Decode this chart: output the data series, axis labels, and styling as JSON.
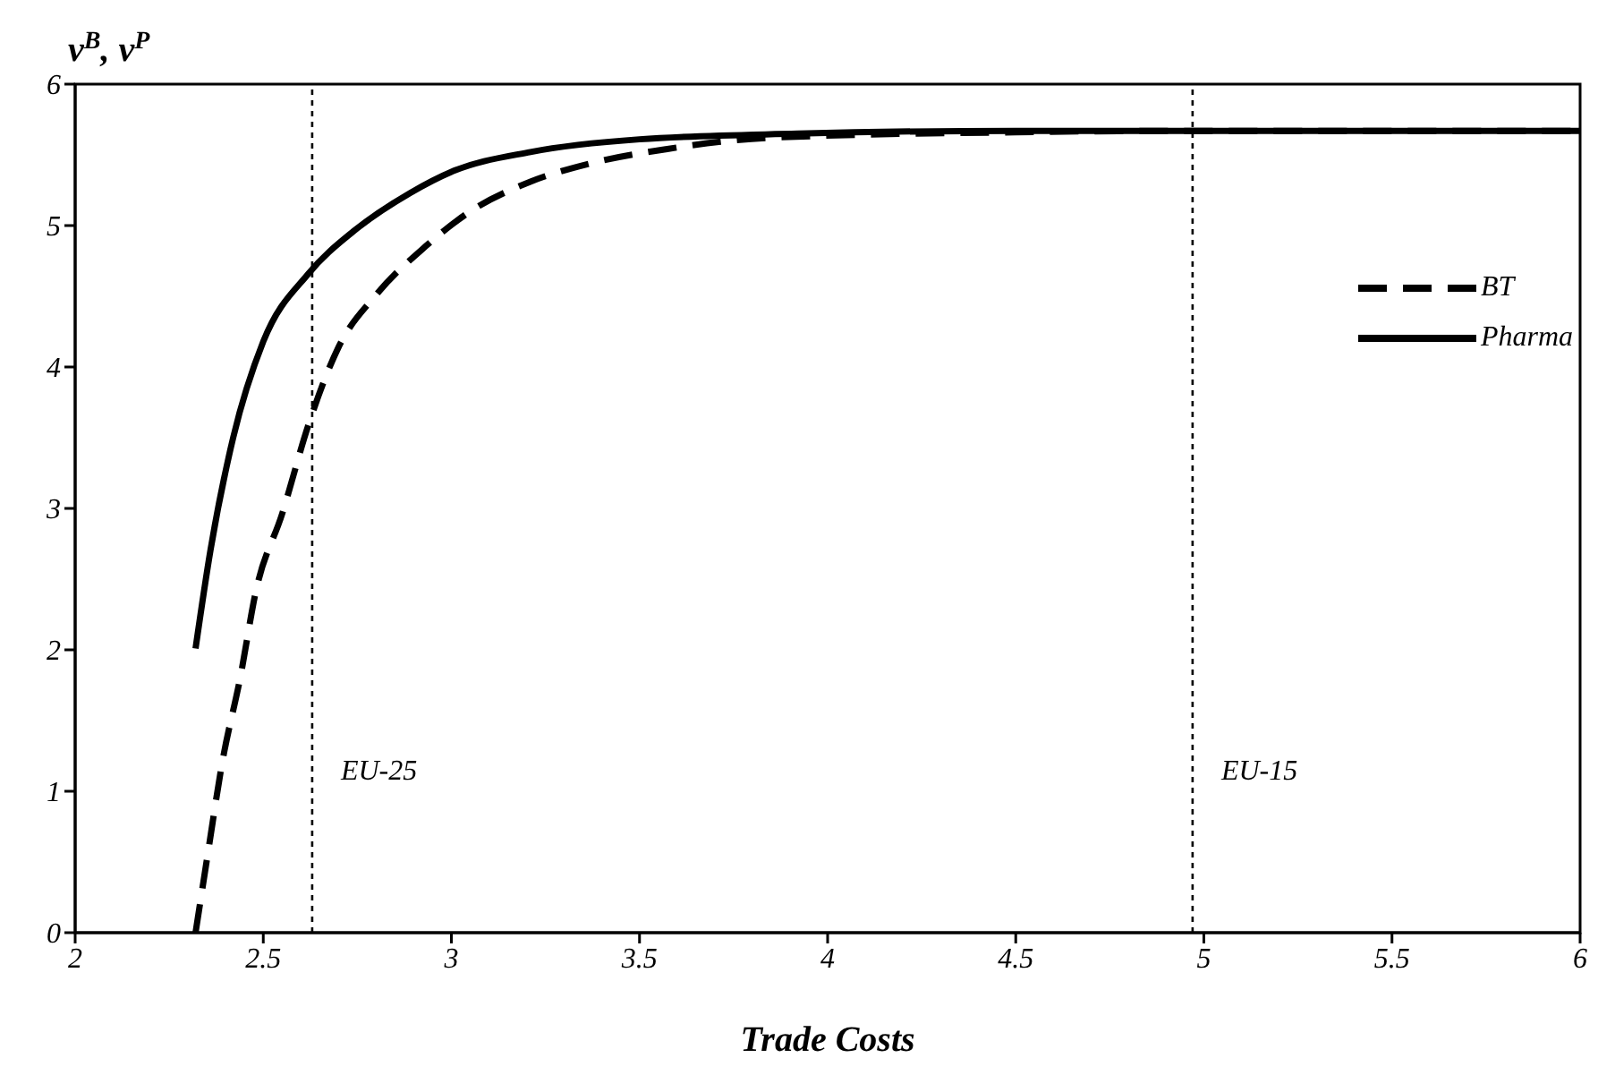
{
  "chart_data": {
    "type": "line",
    "xlabel": "Trade Costs",
    "ylabel": "v$^{B}$, v$^{P}$",
    "xlim": [
      2,
      6
    ],
    "xticks": [
      2,
      2.5,
      3,
      3.5,
      4,
      4.5,
      5,
      5.5,
      6
    ],
    "ylim": [
      0,
      6
    ],
    "yticks": [
      0,
      1,
      2,
      3,
      4,
      5,
      6
    ],
    "grid": false,
    "legend": "top right",
    "marker": "none",
    "series": [
      {
        "name": "BT",
        "color": "#000000",
        "line_style": "dashed",
        "x": [
          2.32,
          2.355,
          2.39,
          2.44,
          2.48,
          2.55,
          2.62,
          2.7,
          2.8,
          2.93,
          3.05,
          3.21,
          3.37,
          3.57,
          3.84,
          4.5,
          5,
          6
        ],
        "values": [
          0,
          0.6,
          1.19,
          1.82,
          2.41,
          2.96,
          3.59,
          4.14,
          4.51,
          4.85,
          5.1,
          5.31,
          5.44,
          5.54,
          5.62,
          5.66,
          5.67,
          5.67
        ]
      },
      {
        "name": "Pharma",
        "color": "#000000",
        "line_style": "solid",
        "x": [
          2.32,
          2.36,
          2.42,
          2.5,
          2.62,
          2.74,
          2.89,
          3.0,
          3.21,
          3.5,
          3.92,
          4.5,
          5,
          6
        ],
        "values": [
          2.01,
          2.71,
          3.5,
          4.18,
          4.66,
          4.96,
          5.23,
          5.38,
          5.52,
          5.61,
          5.65,
          5.67,
          5.67,
          5.67
        ]
      }
    ],
    "ref_lines": [
      {
        "axis": "x",
        "value": 2.63,
        "label": "EU-25",
        "line_style": "dotted",
        "color": "#000000"
      },
      {
        "axis": "x",
        "value": 4.97,
        "label": "EU-15",
        "line_style": "dotted",
        "color": "#000000"
      }
    ]
  }
}
